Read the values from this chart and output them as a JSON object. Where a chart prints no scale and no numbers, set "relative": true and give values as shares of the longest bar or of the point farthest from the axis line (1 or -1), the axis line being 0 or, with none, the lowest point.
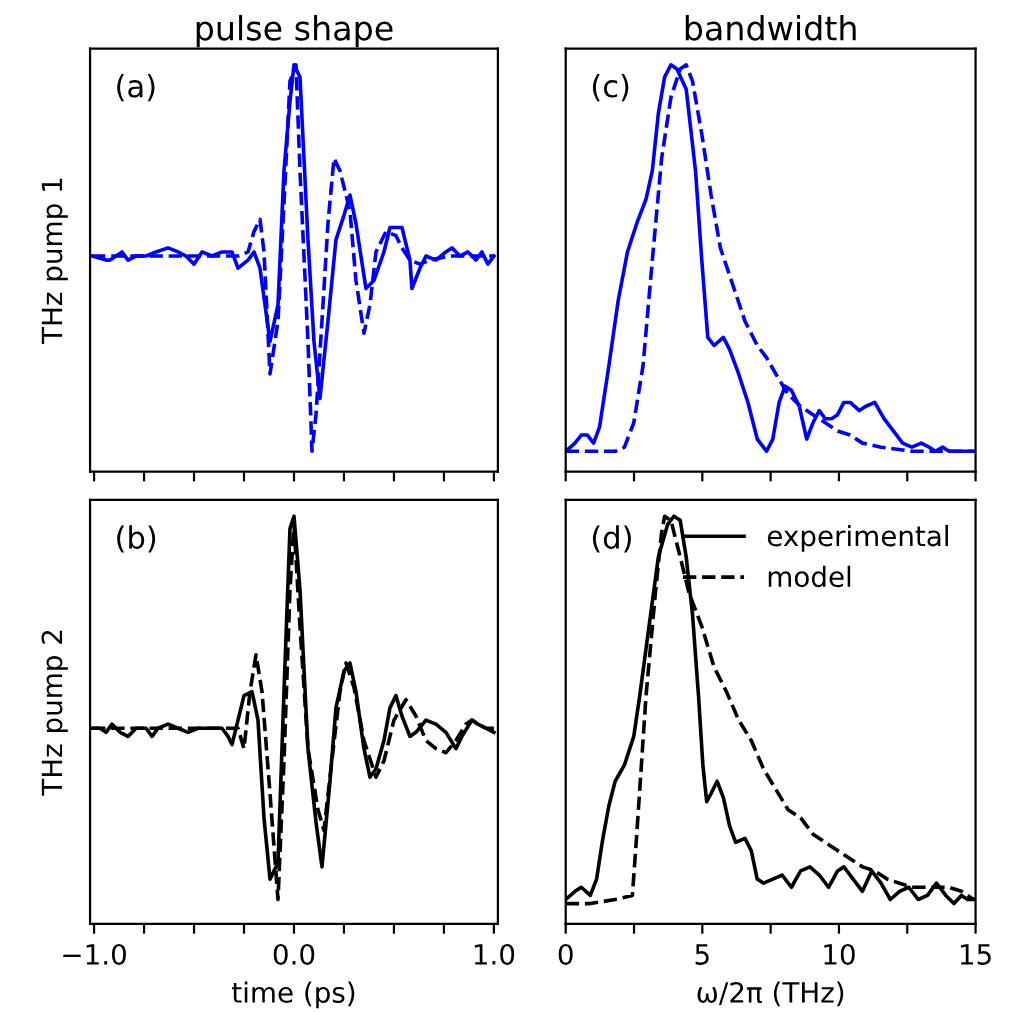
{
  "chart_data": [
    {
      "type": "line",
      "title": "pulse shape",
      "ylabel": "THz pump 1",
      "annotations": [
        "(a)"
      ],
      "relative": true,
      "tick_labels": false,
      "xlim": [
        -1.02,
        1.02
      ],
      "xticks": [
        {
          "value": -1,
          "label": null
        },
        {
          "value": -0.75,
          "label": null
        },
        {
          "value": -0.5,
          "label": null
        },
        {
          "value": -0.25,
          "label": null
        },
        {
          "value": 0,
          "label": null
        },
        {
          "value": 0.25,
          "label": null
        },
        {
          "value": 0.5,
          "label": null
        },
        {
          "value": 0.75,
          "label": null
        },
        {
          "value": 1,
          "label": null
        }
      ],
      "series": [
        {
          "color": "#0000ff",
          "line_style": "solid",
          "x": [
            -1.01,
            -0.94,
            -0.92,
            -0.89,
            -0.86,
            -0.83,
            -0.79,
            -0.74,
            -0.69,
            -0.63,
            -0.58,
            -0.54,
            -0.5,
            -0.46,
            -0.41,
            -0.36,
            -0.31,
            -0.28,
            -0.23,
            -0.2,
            -0.17,
            -0.12,
            -0.08,
            -0.05,
            -0.02,
            0,
            0.03,
            0.07,
            0.1,
            0.13,
            0.17,
            0.21,
            0.25,
            0.28,
            0.31,
            0.36,
            0.4,
            0.45,
            0.48,
            0.54,
            0.58,
            0.59,
            0.63,
            0.66,
            0.71,
            0.76,
            0.79,
            0.83,
            0.87,
            0.91,
            0.94,
            0.97,
            1.0
          ],
          "values": [
            0.53,
            0.52,
            0.52,
            0.53,
            0.54,
            0.52,
            0.53,
            0.53,
            0.54,
            0.55,
            0.54,
            0.53,
            0.51,
            0.54,
            0.53,
            0.54,
            0.54,
            0.5,
            0.52,
            0.54,
            0.5,
            0.32,
            0.41,
            0.74,
            0.91,
            1.0,
            0.97,
            0.57,
            0.32,
            0.18,
            0.37,
            0.57,
            0.63,
            0.68,
            0.61,
            0.45,
            0.47,
            0.54,
            0.6,
            0.6,
            0.52,
            0.45,
            0.5,
            0.53,
            0.52,
            0.54,
            0.55,
            0.53,
            0.54,
            0.52,
            0.54,
            0.51,
            0.53
          ]
        },
        {
          "color": "#0000ff",
          "line_style": "dashed",
          "x": [
            -1.01,
            -0.74,
            -0.41,
            -0.28,
            -0.23,
            -0.2,
            -0.17,
            -0.15,
            -0.12,
            -0.08,
            -0.05,
            -0.02,
            0.01,
            0.03,
            0.07,
            0.09,
            0.11,
            0.14,
            0.17,
            0.2,
            0.23,
            0.28,
            0.31,
            0.35,
            0.38,
            0.41,
            0.46,
            0.51,
            0.54,
            0.58,
            0.63,
            0.68,
            0.78,
            0.91,
            1.0
          ],
          "values": [
            0.53,
            0.53,
            0.53,
            0.53,
            0.54,
            0.59,
            0.62,
            0.54,
            0.24,
            0.37,
            0.66,
            0.96,
            1.0,
            0.74,
            0.32,
            0.05,
            0.14,
            0.37,
            0.61,
            0.77,
            0.74,
            0.64,
            0.47,
            0.34,
            0.41,
            0.54,
            0.59,
            0.58,
            0.55,
            0.52,
            0.51,
            0.52,
            0.53,
            0.53,
            0.53
          ]
        }
      ]
    },
    {
      "type": "line",
      "title": "bandwidth",
      "annotations": [
        "(c)"
      ],
      "relative": true,
      "tick_labels": false,
      "xlim": [
        0,
        15
      ],
      "xticks": [
        {
          "value": 0,
          "label": null
        },
        {
          "value": 2.5,
          "label": null
        },
        {
          "value": 5,
          "label": null
        },
        {
          "value": 7.5,
          "label": null
        },
        {
          "value": 10,
          "label": null
        },
        {
          "value": 12.5,
          "label": null
        },
        {
          "value": 15,
          "label": null
        }
      ],
      "series": [
        {
          "color": "#0000ff",
          "line_style": "solid",
          "x": [
            0,
            0.34,
            0.57,
            0.79,
            1.02,
            1.24,
            1.58,
            1.92,
            2.26,
            2.6,
            2.94,
            3.17,
            3.39,
            3.62,
            3.85,
            4.07,
            4.41,
            4.75,
            4.98,
            5.2,
            5.43,
            5.77,
            6.0,
            6.33,
            6.67,
            7.01,
            7.35,
            7.58,
            7.81,
            8.03,
            8.26,
            8.55,
            8.82,
            9.05,
            9.28,
            9.5,
            9.73,
            9.95,
            10.18,
            10.41,
            10.75,
            10.97,
            11.31,
            11.65,
            11.99,
            12.33,
            12.67,
            13.01,
            13.3,
            13.53,
            13.8,
            14.03,
            14.48,
            14.93
          ],
          "values": [
            0.05,
            0.07,
            0.09,
            0.09,
            0.07,
            0.11,
            0.26,
            0.42,
            0.54,
            0.61,
            0.67,
            0.74,
            0.88,
            0.97,
            1.0,
            0.99,
            0.94,
            0.74,
            0.52,
            0.33,
            0.31,
            0.33,
            0.3,
            0.24,
            0.17,
            0.08,
            0.05,
            0.08,
            0.17,
            0.21,
            0.2,
            0.16,
            0.08,
            0.12,
            0.15,
            0.13,
            0.13,
            0.14,
            0.17,
            0.17,
            0.15,
            0.16,
            0.17,
            0.13,
            0.1,
            0.07,
            0.06,
            0.07,
            0.06,
            0.05,
            0.06,
            0.05,
            0.05,
            0.05
          ]
        },
        {
          "color": "#0000ff",
          "line_style": "dashed",
          "x": [
            0,
            0.45,
            1.81,
            2.15,
            2.49,
            2.83,
            3.17,
            3.51,
            3.85,
            4.19,
            4.41,
            4.64,
            4.98,
            5.32,
            5.66,
            6.11,
            6.56,
            7.01,
            7.35,
            7.69,
            8.14,
            8.6,
            9.05,
            9.5,
            9.95,
            10.41,
            10.86,
            11.54,
            12.67,
            13.8,
            14.93
          ],
          "values": [
            0.05,
            0.05,
            0.05,
            0.06,
            0.12,
            0.26,
            0.52,
            0.77,
            0.92,
            0.99,
            1.0,
            0.96,
            0.83,
            0.68,
            0.55,
            0.46,
            0.37,
            0.31,
            0.28,
            0.24,
            0.19,
            0.16,
            0.14,
            0.12,
            0.1,
            0.09,
            0.07,
            0.06,
            0.05,
            0.05,
            0.05
          ]
        }
      ]
    },
    {
      "type": "line",
      "ylabel": "THz pump 2",
      "xlabel": "time (ps)",
      "annotations": [
        "(b)"
      ],
      "relative": true,
      "tick_labels": "x",
      "xlim": [
        -1.02,
        1.02
      ],
      "xticks": [
        {
          "value": -1,
          "label": "−1.0"
        },
        {
          "value": -0.75,
          "label": null
        },
        {
          "value": -0.5,
          "label": null
        },
        {
          "value": -0.25,
          "label": null
        },
        {
          "value": 0,
          "label": "0.0"
        },
        {
          "value": 0.25,
          "label": null
        },
        {
          "value": 0.5,
          "label": null
        },
        {
          "value": 0.75,
          "label": null
        },
        {
          "value": 1,
          "label": "1.0"
        }
      ],
      "series": [
        {
          "color": "#000000",
          "line_style": "solid",
          "x": [
            -1.01,
            -0.97,
            -0.94,
            -0.91,
            -0.87,
            -0.83,
            -0.79,
            -0.74,
            -0.71,
            -0.68,
            -0.63,
            -0.58,
            -0.53,
            -0.48,
            -0.41,
            -0.36,
            -0.33,
            -0.31,
            -0.28,
            -0.25,
            -0.21,
            -0.18,
            -0.15,
            -0.12,
            -0.08,
            -0.05,
            -0.02,
            0,
            0.03,
            0.07,
            0.11,
            0.14,
            0.18,
            0.21,
            0.25,
            0.28,
            0.31,
            0.35,
            0.38,
            0.41,
            0.45,
            0.48,
            0.51,
            0.54,
            0.58,
            0.61,
            0.66,
            0.71,
            0.76,
            0.81,
            0.84,
            0.89,
            0.92,
            0.96,
            1.0
          ],
          "values": [
            0.48,
            0.48,
            0.47,
            0.49,
            0.47,
            0.46,
            0.48,
            0.48,
            0.46,
            0.48,
            0.49,
            0.48,
            0.47,
            0.48,
            0.48,
            0.48,
            0.46,
            0.44,
            0.5,
            0.56,
            0.57,
            0.5,
            0.26,
            0.11,
            0.15,
            0.57,
            0.97,
            1.0,
            0.82,
            0.43,
            0.25,
            0.14,
            0.35,
            0.53,
            0.62,
            0.64,
            0.57,
            0.43,
            0.36,
            0.38,
            0.45,
            0.53,
            0.56,
            0.51,
            0.46,
            0.47,
            0.5,
            0.49,
            0.47,
            0.43,
            0.46,
            0.5,
            0.49,
            0.48,
            0.47
          ]
        },
        {
          "color": "#000000",
          "line_style": "dashed",
          "x": [
            -1.01,
            -0.74,
            -0.41,
            -0.28,
            -0.25,
            -0.22,
            -0.19,
            -0.16,
            -0.12,
            -0.08,
            -0.05,
            -0.02,
            0,
            0.03,
            0.07,
            0.12,
            0.15,
            0.18,
            0.23,
            0.26,
            0.3,
            0.35,
            0.41,
            0.45,
            0.5,
            0.56,
            0.61,
            0.66,
            0.71,
            0.76,
            0.81,
            0.86,
            0.89,
            0.92,
            0.96,
            1.0
          ],
          "values": [
            0.48,
            0.48,
            0.48,
            0.48,
            0.43,
            0.57,
            0.66,
            0.57,
            0.32,
            0.06,
            0.4,
            0.82,
            0.98,
            0.73,
            0.43,
            0.28,
            0.23,
            0.36,
            0.57,
            0.64,
            0.58,
            0.45,
            0.36,
            0.4,
            0.5,
            0.55,
            0.51,
            0.45,
            0.43,
            0.42,
            0.45,
            0.49,
            0.5,
            0.49,
            0.48,
            0.48
          ]
        }
      ]
    },
    {
      "type": "line",
      "xlabel": "ω/2π (THz)",
      "annotations": [
        "(d)"
      ],
      "relative": true,
      "tick_labels": "x",
      "xlim": [
        0,
        15
      ],
      "legend": "top right",
      "xticks": [
        0,
        {
          "value": 2.5,
          "label": null
        },
        5,
        {
          "value": 7.5,
          "label": null
        },
        10,
        {
          "value": 12.5,
          "label": null
        },
        15
      ],
      "series": [
        {
          "name": "experimental",
          "color": "#000000",
          "line_style": "solid",
          "x": [
            0,
            0.34,
            0.57,
            0.9,
            1.13,
            1.36,
            1.58,
            1.81,
            2.15,
            2.49,
            2.71,
            3.05,
            3.39,
            3.73,
            3.96,
            4.19,
            4.41,
            4.64,
            4.86,
            5.02,
            5.16,
            5.32,
            5.54,
            5.77,
            6.0,
            6.22,
            6.56,
            6.79,
            7.01,
            7.24,
            7.58,
            7.92,
            8.26,
            8.6,
            8.94,
            9.28,
            9.62,
            9.95,
            10.18,
            10.52,
            10.86,
            11.2,
            11.54,
            11.88,
            12.22,
            12.56,
            12.9,
            13.24,
            13.57,
            13.91,
            14.21,
            14.48,
            14.71,
            14.93
          ],
          "values": [
            0.06,
            0.08,
            0.09,
            0.07,
            0.11,
            0.21,
            0.29,
            0.35,
            0.39,
            0.46,
            0.56,
            0.73,
            0.9,
            0.98,
            1.0,
            0.99,
            0.9,
            0.76,
            0.56,
            0.39,
            0.3,
            0.32,
            0.35,
            0.31,
            0.24,
            0.2,
            0.21,
            0.18,
            0.11,
            0.1,
            0.11,
            0.12,
            0.09,
            0.13,
            0.14,
            0.12,
            0.09,
            0.13,
            0.14,
            0.11,
            0.08,
            0.13,
            0.1,
            0.06,
            0.08,
            0.09,
            0.06,
            0.07,
            0.1,
            0.07,
            0.05,
            0.07,
            0.06,
            0.06
          ]
        },
        {
          "name": "model",
          "color": "#000000",
          "line_style": "dashed",
          "x": [
            0,
            0.9,
            1.81,
            2.44,
            2.6,
            2.94,
            3.28,
            3.51,
            3.62,
            3.85,
            4.19,
            4.52,
            4.98,
            5.43,
            5.88,
            6.33,
            6.79,
            7.24,
            7.69,
            8.14,
            8.6,
            9.05,
            9.5,
            9.95,
            10.41,
            10.86,
            11.31,
            11.76,
            12.22,
            12.67,
            13.08,
            13.57,
            14.03,
            14.48,
            14.93
          ],
          "values": [
            0.05,
            0.05,
            0.06,
            0.07,
            0.22,
            0.56,
            0.81,
            0.96,
            1.0,
            0.99,
            0.9,
            0.81,
            0.73,
            0.63,
            0.57,
            0.5,
            0.45,
            0.38,
            0.33,
            0.28,
            0.26,
            0.22,
            0.2,
            0.18,
            0.16,
            0.14,
            0.13,
            0.11,
            0.1,
            0.09,
            0.09,
            0.09,
            0.09,
            0.08,
            0.06
          ]
        }
      ]
    }
  ]
}
